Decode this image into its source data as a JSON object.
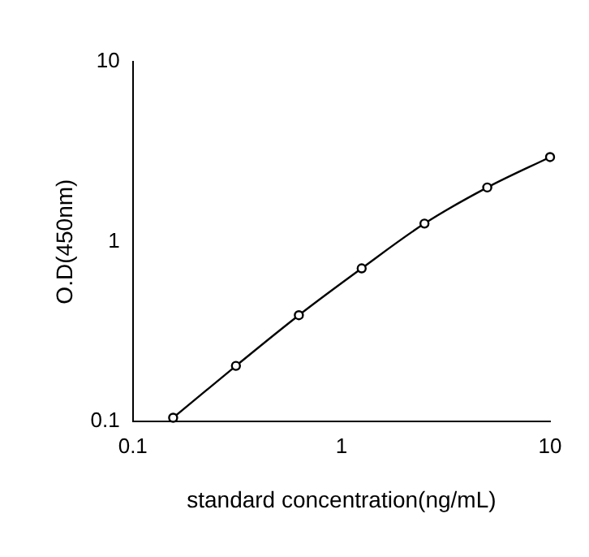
{
  "chart_data": {
    "type": "line",
    "xlabel": "standard concentration(ng/mL)",
    "ylabel": "O.D(450nm)",
    "x": [
      0.156,
      0.312,
      0.625,
      1.25,
      2.5,
      5,
      10
    ],
    "series": [
      {
        "color": "#000000",
        "values": [
          0.105,
          0.204,
          0.39,
          0.71,
          1.26,
          2.0,
          2.95
        ]
      }
    ],
    "xlim": [
      0.1,
      10
    ],
    "ylim": [
      0.1,
      10
    ],
    "xticks": [
      0.1,
      1,
      10
    ],
    "yticks": [
      0.1,
      1,
      10
    ],
    "log": "xy",
    "grid": false,
    "legend": false,
    "marker": "circle",
    "line_style": "solid"
  }
}
